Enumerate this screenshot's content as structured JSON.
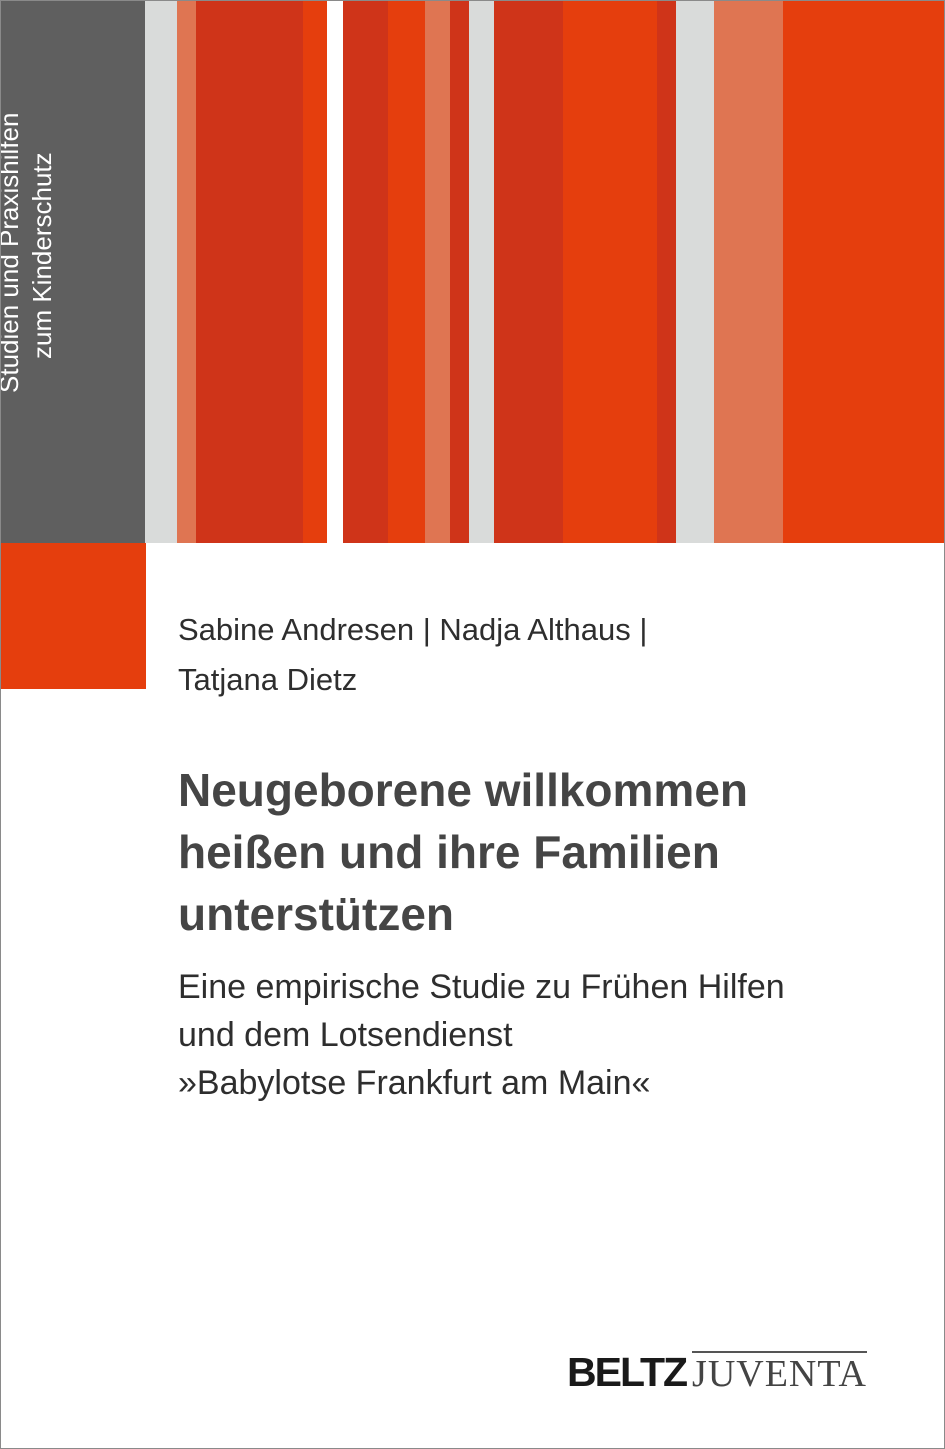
{
  "series": {
    "line1": "Studien und Praxishilfen",
    "line2": "zum Kinderschutz"
  },
  "authors": {
    "line1": "Sabine Andresen | Nadja Althaus |",
    "line2": "Tatjana Dietz"
  },
  "title": {
    "line1": "Neugeborene willkommen",
    "line2": "heißen und ihre Familien",
    "line3": "unterstützen"
  },
  "subtitle": {
    "line1": "Eine empirische Studie zu Frühen Hilfen",
    "line2": "und dem Lotsendienst",
    "line3": "»Babylotse Frankfurt am Main«"
  },
  "publisher": {
    "beltz": "BELTZ",
    "juventa": "JUVENTA"
  },
  "colors": {
    "dark_red": "#cf3419",
    "orange": "#e53e0d",
    "salmon": "#df7552",
    "light_gray": "#d9dbda",
    "panel_gray": "#5f5f5f"
  }
}
